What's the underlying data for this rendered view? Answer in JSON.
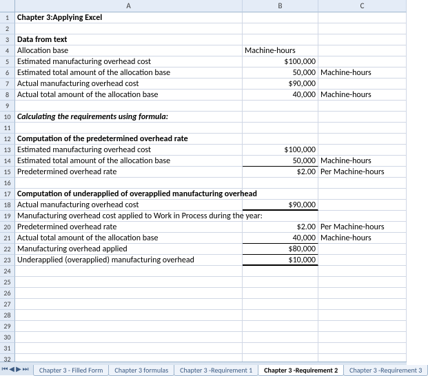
{
  "columns": {
    "A": "A",
    "B": "B",
    "C": "C"
  },
  "rows": {
    "1": {
      "A": "Chapter 3:Applying Excel"
    },
    "3": {
      "A": "Data from text"
    },
    "4": {
      "A": "Allocation base",
      "B": "Machine-hours"
    },
    "5": {
      "A": "Estimated manufacturing overhead cost",
      "B": "$100,000"
    },
    "6": {
      "A": "Estimated total amount of the allocation base",
      "B": "50,000",
      "C": "Machine-hours"
    },
    "7": {
      "A": "Actual manufacturing overhead cost",
      "B": "$90,000"
    },
    "8": {
      "A": "Actual total amount of the allocation base",
      "B": "40,000",
      "C": "Machine-hours"
    },
    "10": {
      "A": "Calculating the requirements using formula:"
    },
    "12": {
      "A": "Computation of the predetermined overhead rate"
    },
    "13": {
      "A": "Estimated manufacturing overhead cost",
      "B": "$100,000"
    },
    "14": {
      "A": "Estimated total amount of the allocation base",
      "B": "50,000",
      "C": "Machine-hours"
    },
    "15": {
      "A": "Predetermined overhead rate",
      "B": "$2.00",
      "C": "Per Machine-hours"
    },
    "17": {
      "A": "Computation of underapplied of overapplied manufacturing overhead"
    },
    "18": {
      "A": "Actual manufacturing overhead cost",
      "B": "$90,000"
    },
    "19": {
      "A": "Manufacturing overhead cost applied to Work in Process during the year:"
    },
    "20": {
      "A": " Predetermined overhead rate",
      "B": "$2.00",
      "C": "Per Machine-hours"
    },
    "21": {
      "A": " Actual total amount of the allocation base",
      "B": "40,000",
      "C": "Machine-hours"
    },
    "22": {
      "A": " Manufacturing overhead applied",
      "B": "$80,000"
    },
    "23": {
      "A": "Underapplied (overapplied) manufacturing overhead",
      "B": "$10,000"
    }
  },
  "tabs": [
    "Chapter 3 - Filled Form",
    "Chapter 3 formulas",
    "Chapter 3 -Requirement 1",
    "Chapter 3 -Requirement 2",
    "Chapter 3 -Requirement 3"
  ],
  "activeTab": 3,
  "nav": {
    "first": "⏮",
    "prev": "◀",
    "next": "▶",
    "last": "⏭"
  },
  "style": {
    "boldRows": [
      1,
      3,
      10,
      12,
      17
    ],
    "italicRows": [
      10
    ],
    "rightAlignB": [
      5,
      6,
      7,
      8,
      13,
      14,
      15,
      18,
      20,
      21,
      22,
      23
    ],
    "leftAlignB": [
      4
    ],
    "underlineSingleB": [
      14,
      21,
      22
    ],
    "underlineThickB": [
      18,
      23
    ]
  },
  "totalRows": 32
}
